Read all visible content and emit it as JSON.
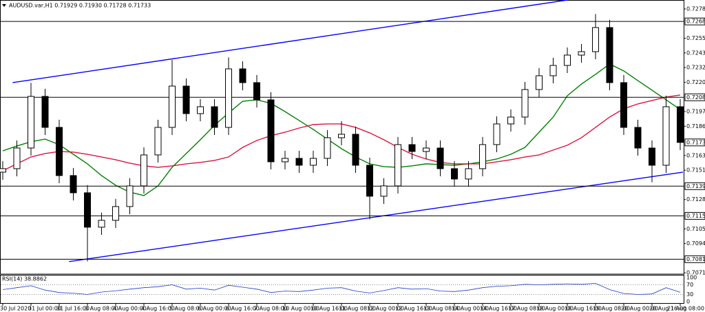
{
  "chart_data": {
    "type": "candlestick",
    "title": "AUDUSD.var,H1  0.71929 0.71930 0.71728 0.71733",
    "categories": [
      "30 Jul 2020",
      null,
      "31 Jul 00:00",
      null,
      "31 Jul 16:00",
      null,
      "3 Aug 08:00",
      null,
      "4 Aug 00:00",
      null,
      "4 Aug 16:00",
      null,
      "5 Aug 08:00",
      null,
      "6 Aug 00:00",
      null,
      "6 Aug 16:00",
      null,
      "7 Aug 08:00",
      null,
      "10 Aug 00:00",
      null,
      "10 Aug 16:00",
      null,
      "11 Aug 08:00",
      null,
      "12 Aug 00:00",
      null,
      "12 Aug 16:00",
      null,
      "13 Aug 08:00",
      null,
      "14 Aug 00:00",
      null,
      "14 Aug 16:00",
      null,
      "17 Aug 08:00",
      null,
      "18 Aug 00:00",
      null,
      "18 Aug 16:00",
      null,
      "19 Aug 08:00",
      null,
      "20 Aug 00:00",
      null,
      "20 Aug 16:00",
      null,
      "21 Aug 08:00"
    ],
    "open": [
      0.715,
      0.71527,
      0.71689,
      0.72094,
      0.71851,
      0.71473,
      0.71338,
      0.71068,
      0.71122,
      0.7123,
      0.71392,
      0.71635,
      0.71851,
      0.72175,
      0.71959,
      0.72013,
      0.71851,
      0.7231,
      0.72202,
      0.72067,
      0.71581,
      0.71608,
      0.71554,
      0.71608,
      0.7177,
      0.71797,
      0.71554,
      0.71311,
      0.71392,
      0.71716,
      0.71662,
      0.71689,
      0.71527,
      0.71446,
      0.71527,
      0.71716,
      0.71878,
      0.71932,
      0.72148,
      0.72256,
      0.72337,
      0.72418,
      0.72445,
      0.72634,
      0.72202,
      0.71851,
      0.71689,
      0.71554,
      0.72013
    ],
    "high": [
      0.71587,
      0.71749,
      0.722,
      0.72154,
      0.71911,
      0.71533,
      0.71398,
      0.71182,
      0.7129,
      0.71452,
      0.71695,
      0.71911,
      0.7238,
      0.72235,
      0.72073,
      0.72073,
      0.724,
      0.7237,
      0.72262,
      0.72127,
      0.71668,
      0.71668,
      0.71668,
      0.7183,
      0.719,
      0.71857,
      0.71614,
      0.71452,
      0.71776,
      0.71776,
      0.71749,
      0.71749,
      0.71587,
      0.71587,
      0.71776,
      0.71938,
      0.71992,
      0.72208,
      0.72316,
      0.72397,
      0.72478,
      0.72505,
      0.7274,
      0.72694,
      0.72262,
      0.71911,
      0.71749,
      0.721,
      0.72073
    ],
    "low": [
      0.7144,
      0.71467,
      0.71629,
      0.71791,
      0.71413,
      0.71278,
      0.708,
      0.71008,
      0.71062,
      0.7117,
      0.71332,
      0.71575,
      0.71791,
      0.71899,
      0.71899,
      0.71791,
      0.71791,
      0.72142,
      0.72007,
      0.71521,
      0.71521,
      0.71494,
      0.71494,
      0.71548,
      0.7171,
      0.71494,
      0.7113,
      0.71251,
      0.71332,
      0.71602,
      0.71602,
      0.71467,
      0.71386,
      0.71386,
      0.71467,
      0.71656,
      0.71818,
      0.71872,
      0.72088,
      0.72196,
      0.72277,
      0.72358,
      0.72385,
      0.72142,
      0.71791,
      0.71629,
      0.7142,
      0.71494,
      0.71673
    ],
    "close": [
      0.71527,
      0.71689,
      0.72094,
      0.71851,
      0.71473,
      0.71338,
      0.71068,
      0.71122,
      0.7123,
      0.71392,
      0.71635,
      0.71851,
      0.72175,
      0.71959,
      0.72013,
      0.71851,
      0.7231,
      0.72202,
      0.72067,
      0.71581,
      0.71608,
      0.71554,
      0.71608,
      0.7177,
      0.71797,
      0.71554,
      0.71311,
      0.71392,
      0.71716,
      0.71662,
      0.71689,
      0.71527,
      0.71446,
      0.71527,
      0.71716,
      0.71878,
      0.71932,
      0.72148,
      0.72256,
      0.72337,
      0.72418,
      0.72445,
      0.72634,
      0.72202,
      0.71851,
      0.71689,
      0.71554,
      0.72013,
      0.71733
    ],
    "ylim": [
      0.707,
      0.72834
    ],
    "yticks": [
      {
        "value": 0.7278,
        "label": "0.72780"
      },
      {
        "value": 0.7255,
        "label": "0.72550"
      },
      {
        "value": 0.72435,
        "label": "0.72435"
      },
      {
        "value": 0.7232,
        "label": "0.72320"
      },
      {
        "value": 0.72205,
        "label": "0.72205"
      },
      {
        "value": 0.71975,
        "label": "0.71975"
      },
      {
        "value": 0.7186,
        "label": "0.71860"
      },
      {
        "value": 0.7163,
        "label": "0.71630"
      },
      {
        "value": 0.71515,
        "label": "0.71515"
      },
      {
        "value": 0.71285,
        "label": "0.71285"
      },
      {
        "value": 0.71055,
        "label": "0.71055"
      },
      {
        "value": 0.7094,
        "label": "0.70940"
      },
      {
        "value": 0.7071,
        "label": "0.70710"
      }
    ],
    "levels": [
      {
        "value": 0.72682,
        "label": "0.72682"
      },
      {
        "value": 0.72087,
        "label": "0.72087"
      },
      {
        "value": 0.7139,
        "label": "0.71390"
      },
      {
        "value": 0.71157,
        "label": "0.71157"
      },
      {
        "value": 0.70817,
        "label": "0.70817"
      }
    ],
    "last_price": {
      "value": 0.71733,
      "label": "0.71733"
    },
    "moving_averages": [
      {
        "color": "#008000",
        "values": [
          0.71667,
          0.71705,
          0.71738,
          0.71759,
          0.71716,
          0.7164,
          0.71565,
          0.71473,
          0.71397,
          0.71343,
          0.71316,
          0.71392,
          0.71538,
          0.71646,
          0.71754,
          0.71867,
          0.71964,
          0.72056,
          0.72067,
          0.7204,
          0.71975,
          0.71905,
          0.71835,
          0.71759,
          0.71684,
          0.71619,
          0.71565,
          0.71543,
          0.71538,
          0.71549,
          0.71565,
          0.71559,
          0.71554,
          0.71565,
          0.71581,
          0.71603,
          0.7164,
          0.71694,
          0.71813,
          0.71932,
          0.72099,
          0.72191,
          0.72267,
          0.72348,
          0.72294,
          0.72218,
          0.72143,
          0.72067,
          0.71991
        ]
      },
      {
        "color": "#dc143c",
        "values": [
          0.71511,
          0.71565,
          0.71619,
          0.71646,
          0.71662,
          0.71657,
          0.7164,
          0.71619,
          0.71597,
          0.7157,
          0.71549,
          0.71538,
          0.71549,
          0.71565,
          0.71576,
          0.71592,
          0.71619,
          0.71694,
          0.71748,
          0.71786,
          0.71813,
          0.71846,
          0.71873,
          0.71878,
          0.71878,
          0.71851,
          0.71808,
          0.71754,
          0.71694,
          0.7164,
          0.71603,
          0.71576,
          0.71565,
          0.71565,
          0.71565,
          0.71581,
          0.71597,
          0.71619,
          0.71635,
          0.71673,
          0.71711,
          0.7177,
          0.71851,
          0.71932,
          0.71997,
          0.72035,
          0.72062,
          0.72089,
          0.72105
        ]
      }
    ],
    "channels": [
      {
        "color": "#0000ff",
        "x": [
          0.7,
          40
        ],
        "values": [
          0.72202,
          0.7285
        ]
      },
      {
        "color": "#0000ff",
        "x": [
          4.7,
          48.2
        ],
        "values": [
          0.70798,
          0.715
        ]
      }
    ],
    "rsi": {
      "label": "RSI(14) 38.8862",
      "color": "#1e3cc8",
      "ylim": [
        0,
        100
      ],
      "yticks": [
        100,
        70,
        30,
        0
      ],
      "values": [
        50,
        58,
        66,
        48,
        38,
        35,
        30,
        40,
        45,
        52,
        58,
        62,
        70,
        52,
        56,
        48,
        68,
        60,
        52,
        38,
        44,
        42,
        48,
        56,
        58,
        44,
        36,
        46,
        58,
        52,
        54,
        44,
        42,
        48,
        58,
        64,
        66,
        72,
        70,
        72,
        74,
        72,
        76,
        50,
        34,
        30,
        32,
        58,
        38.8862
      ]
    }
  }
}
